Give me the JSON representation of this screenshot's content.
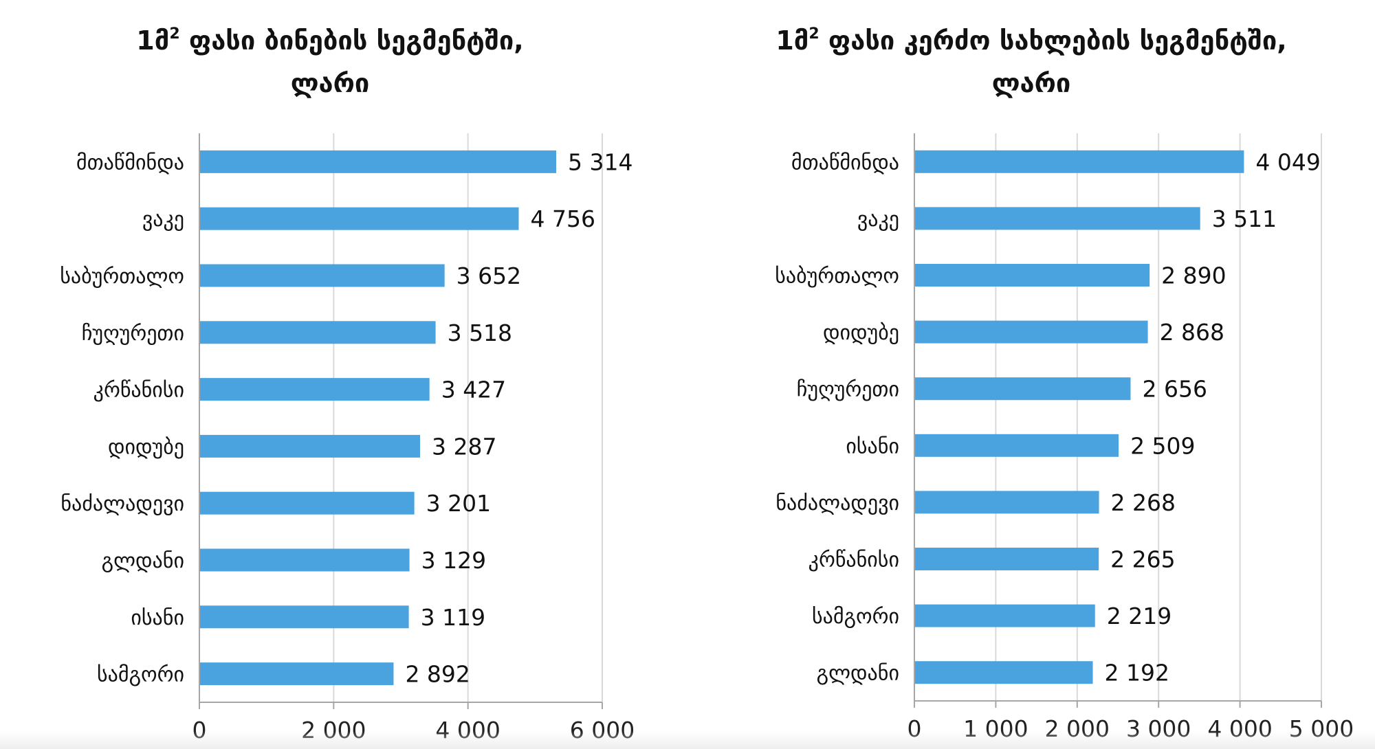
{
  "chart_data": [
    {
      "type": "bar",
      "orientation": "horizontal",
      "title_prefix": "1მ",
      "title_sup": "2",
      "title_rest": " ფასი ბინების სეგმენტში,",
      "subtitle": "ლარი",
      "categories": [
        "მთაწმინდა",
        "ვაკე",
        "საბურთალო",
        "ჩუღურეთი",
        "კრწანისი",
        "დიდუბე",
        "ნაძალადევი",
        "გლდანი",
        "ისანი",
        "სამგორი"
      ],
      "values": [
        5314,
        4756,
        3652,
        3518,
        3427,
        3287,
        3201,
        3129,
        3119,
        2892
      ],
      "value_labels": [
        "5 314",
        "4 756",
        "3 652",
        "3 518",
        "3 427",
        "3 287",
        "3 201",
        "3 129",
        "3 119",
        "2 892"
      ],
      "xlim": [
        0,
        6000
      ],
      "ticks": [
        0,
        2000,
        4000,
        6000
      ],
      "tick_labels": [
        "0",
        "2 000",
        "4 000",
        "6 000"
      ],
      "bar_color": "#4aa3df",
      "grid": true,
      "legend": "none"
    },
    {
      "type": "bar",
      "orientation": "horizontal",
      "title_prefix": "1მ",
      "title_sup": "2",
      "title_rest": " ფასი კერძო სახლების სეგმენტში,",
      "subtitle": "ლარი",
      "categories": [
        "მთაწმინდა",
        "ვაკე",
        "საბურთალო",
        "დიდუბე",
        "ჩუღურეთი",
        "ისანი",
        "ნაძალადევი",
        "კრწანისი",
        "სამგორი",
        "გლდანი"
      ],
      "values": [
        4049,
        3511,
        2890,
        2868,
        2656,
        2509,
        2268,
        2265,
        2219,
        2192
      ],
      "value_labels": [
        "4 049",
        "3 511",
        "2 890",
        "2 868",
        "2 656",
        "2 509",
        "2 268",
        "2 265",
        "2 219",
        "2 192"
      ],
      "xlim": [
        0,
        5000
      ],
      "ticks": [
        0,
        1000,
        2000,
        3000,
        4000,
        5000
      ],
      "tick_labels": [
        "0",
        "1 000",
        "2 000",
        "3 000",
        "4 000",
        "5 000"
      ],
      "bar_color": "#4aa3df",
      "grid": true,
      "legend": "none"
    }
  ]
}
